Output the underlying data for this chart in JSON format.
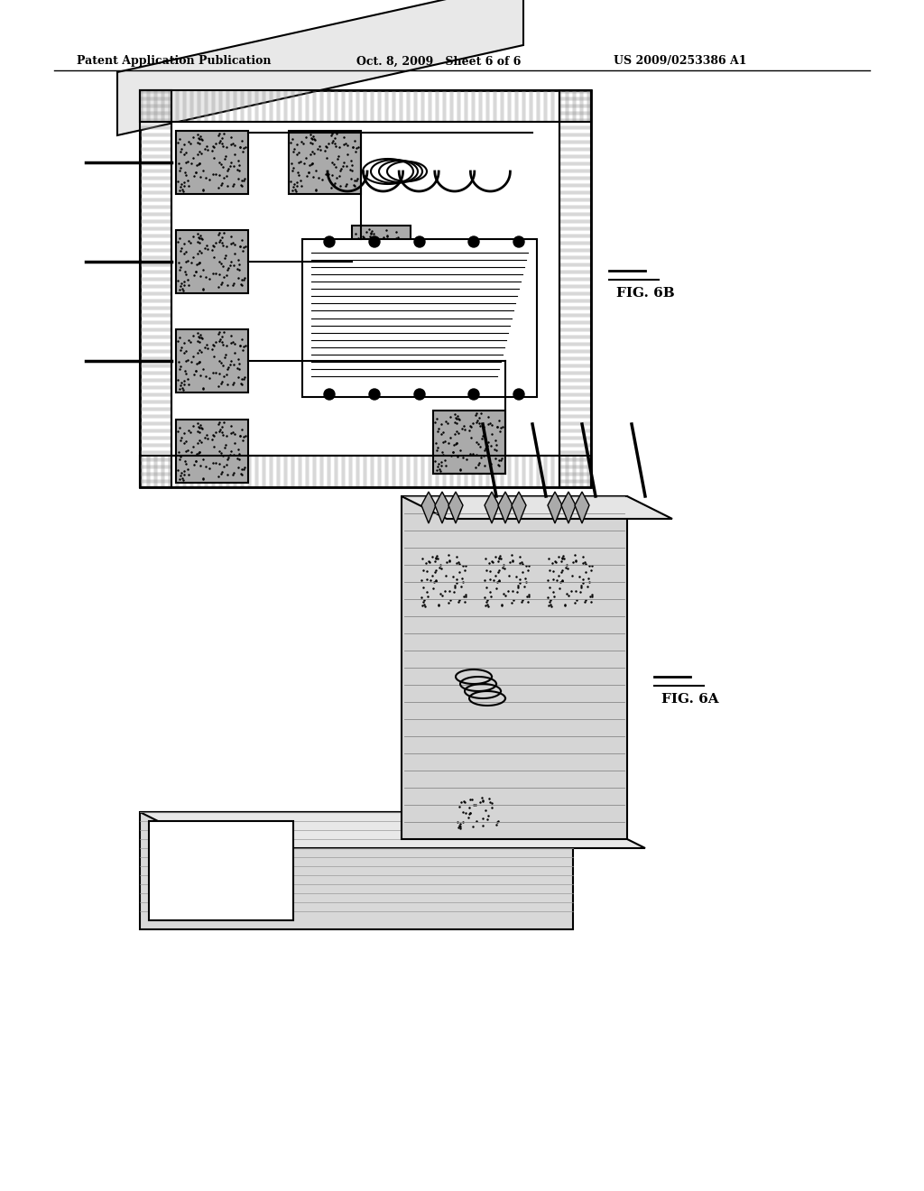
{
  "background_color": "#ffffff",
  "header_text_left": "Patent Application Publication",
  "header_text_mid": "Oct. 8, 2009   Sheet 6 of 6",
  "header_text_right": "US 2009/0253386 A1",
  "header_fontsize": 9,
  "fig_label_6B": "FIG. 6B",
  "fig_label_6A": "FIG. 6A"
}
